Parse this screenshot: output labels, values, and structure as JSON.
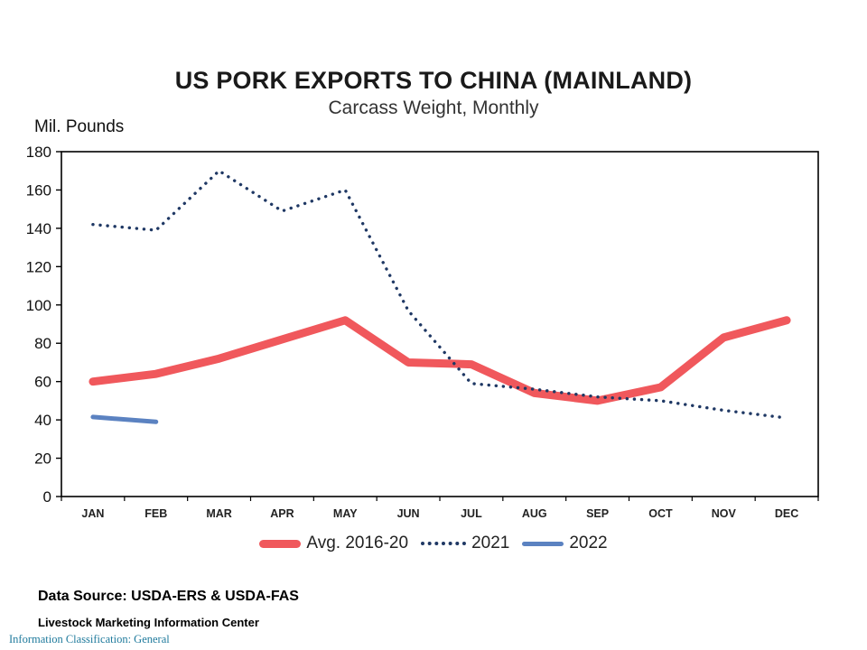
{
  "chart_data": {
    "type": "line",
    "title": "US PORK EXPORTS TO CHINA (MAINLAND)",
    "subtitle": "Carcass Weight, Monthly",
    "ylabel": "Mil. Pounds",
    "ylim": [
      0,
      180
    ],
    "yticks": [
      0,
      20,
      40,
      60,
      80,
      100,
      120,
      140,
      160,
      180
    ],
    "grid": false,
    "legend_position": "bottom",
    "categories": [
      "JAN",
      "FEB",
      "MAR",
      "APR",
      "MAY",
      "JUN",
      "JUL",
      "AUG",
      "SEP",
      "OCT",
      "NOV",
      "DEC"
    ],
    "series": [
      {
        "name": "Avg. 2016-20",
        "style": "thick-solid",
        "color": "#f0585c",
        "values": [
          60,
          64,
          72,
          82,
          92,
          70,
          69,
          54,
          50,
          57,
          83,
          92
        ]
      },
      {
        "name": "2021",
        "style": "dotted",
        "color": "#1f3864",
        "values": [
          142,
          139,
          170,
          149,
          160,
          97,
          59,
          56,
          52,
          50,
          45,
          41
        ]
      },
      {
        "name": "2022",
        "style": "solid",
        "color": "#5b82c1",
        "values": [
          41.5,
          39,
          null,
          null,
          null,
          null,
          null,
          null,
          null,
          null,
          null,
          null
        ]
      }
    ]
  },
  "footer": {
    "data_source": "Data Source:  USDA-ERS & USDA-FAS",
    "org": "Livestock Marketing Information Center",
    "classification": "Information Classification:  General"
  }
}
